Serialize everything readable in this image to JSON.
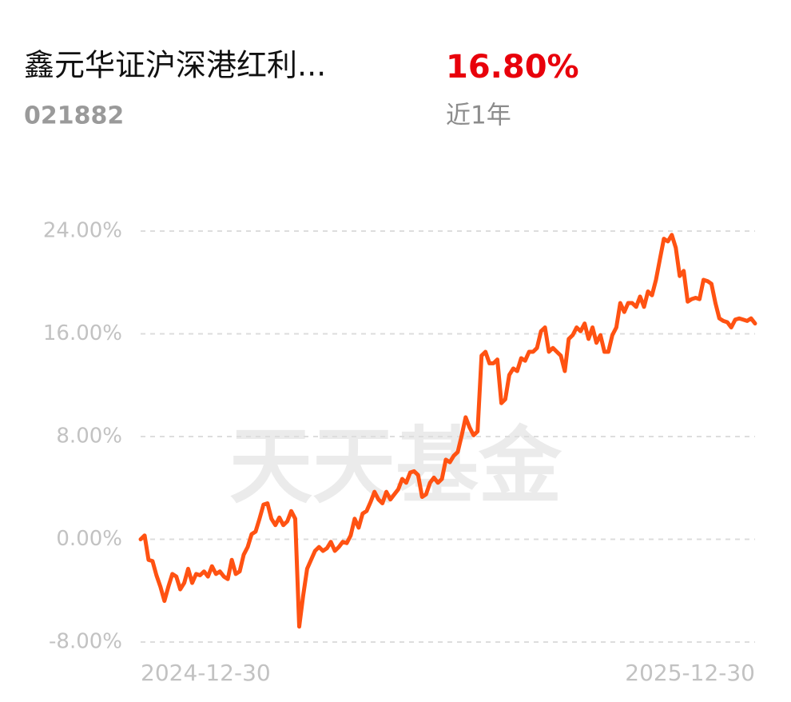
{
  "header": {
    "name": "鑫元华证沪深港红利...",
    "return": "16.80%",
    "code": "021882",
    "period": "近1年"
  },
  "chart_data": {
    "type": "line",
    "watermark": "天天基金",
    "color": "#ff5212",
    "ylim": [
      -8,
      24
    ],
    "yticks": [
      {
        "value": -8,
        "label": "-8.00%"
      },
      {
        "value": 0,
        "label": "0.00%"
      },
      {
        "value": 8,
        "label": "8.00%"
      },
      {
        "value": 16,
        "label": "16.00%"
      },
      {
        "value": 24,
        "label": "24.00%"
      }
    ],
    "grid": true,
    "categories": [
      "2024-12-30",
      null,
      null,
      null,
      null,
      null,
      null,
      null,
      null,
      null,
      null,
      null,
      null,
      null,
      null,
      null,
      null,
      null,
      null,
      null,
      null,
      null,
      null,
      null,
      null,
      null,
      null,
      null,
      null,
      null,
      null,
      null,
      null,
      null,
      null,
      null,
      null,
      null,
      null,
      null,
      null,
      null,
      null,
      null,
      null,
      null,
      null,
      null,
      null,
      null,
      null,
      null,
      null,
      null,
      null,
      null,
      null,
      null,
      null,
      null,
      null,
      null,
      null,
      null,
      null,
      null,
      null,
      null,
      null,
      null,
      null,
      null,
      null,
      null,
      null,
      null,
      null,
      null,
      null,
      null,
      null,
      null,
      null,
      null,
      null,
      null,
      null,
      null,
      null,
      null,
      null,
      null,
      null,
      null,
      null,
      null,
      null,
      null,
      null,
      null,
      null,
      null,
      null,
      null,
      null,
      null,
      null,
      null,
      null,
      null,
      null,
      null,
      null,
      null,
      null,
      null,
      null,
      null,
      null,
      null,
      null,
      null,
      null,
      null,
      null,
      null,
      null,
      null,
      null,
      null,
      null,
      null,
      null,
      null,
      null,
      null,
      null,
      null,
      null,
      null,
      null,
      null,
      null,
      null,
      null,
      null,
      null,
      null,
      null,
      null,
      null,
      null,
      null,
      null,
      null,
      "2025-12-30"
    ],
    "values": [
      0,
      0.3,
      -1.6,
      -1.7,
      -2.8,
      -3.7,
      -4.8,
      -3.7,
      -2.7,
      -2.9,
      -3.9,
      -3.4,
      -2.3,
      -3.4,
      -2.7,
      -2.8,
      -2.5,
      -2.9,
      -2.1,
      -2.7,
      -2.5,
      -2.9,
      -3.1,
      -1.6,
      -2.7,
      -2.5,
      -1.2,
      -0.6,
      0.4,
      0.6,
      1.6,
      2.7,
      2.8,
      1.6,
      1.1,
      1.7,
      1.1,
      1.4,
      2.2,
      1.6,
      -6.8,
      -4.4,
      -2.3,
      -1.6,
      -0.9,
      -0.6,
      -0.9,
      -0.7,
      -0.2,
      -0.9,
      -0.6,
      -0.2,
      -0.3,
      0.3,
      1.6,
      0.9,
      2.0,
      2.2,
      2.9,
      3.7,
      3.1,
      2.8,
      3.7,
      3.1,
      3.5,
      3.9,
      4.7,
      4.4,
      5.2,
      5.3,
      5.0,
      3.3,
      3.5,
      4.4,
      4.8,
      4.4,
      4.7,
      6.2,
      6.0,
      6.5,
      6.8,
      8.1,
      9.5,
      8.7,
      8.1,
      8.4,
      14.3,
      14.6,
      13.7,
      13.7,
      14.0,
      10.6,
      10.9,
      12.8,
      13.3,
      13.1,
      14.1,
      13.9,
      14.6,
      14.6,
      14.9,
      16.2,
      16.5,
      14.6,
      14.9,
      14.6,
      14.3,
      13.1,
      15.6,
      15.9,
      16.5,
      16.2,
      16.8,
      15.6,
      16.5,
      15.3,
      15.9,
      14.6,
      14.6,
      15.9,
      16.5,
      18.4,
      17.7,
      18.4,
      18.4,
      18.1,
      18.9,
      18.1,
      19.3,
      19.0,
      20.2,
      21.8,
      23.4,
      23.2,
      23.7,
      22.7,
      20.5,
      20.9,
      18.5,
      18.7,
      18.8,
      18.7,
      20.2,
      20.1,
      19.9,
      18.4,
      17.2,
      17.0,
      16.9,
      16.5,
      17.1,
      17.2,
      17.1,
      17.0,
      17.2,
      16.8
    ]
  }
}
